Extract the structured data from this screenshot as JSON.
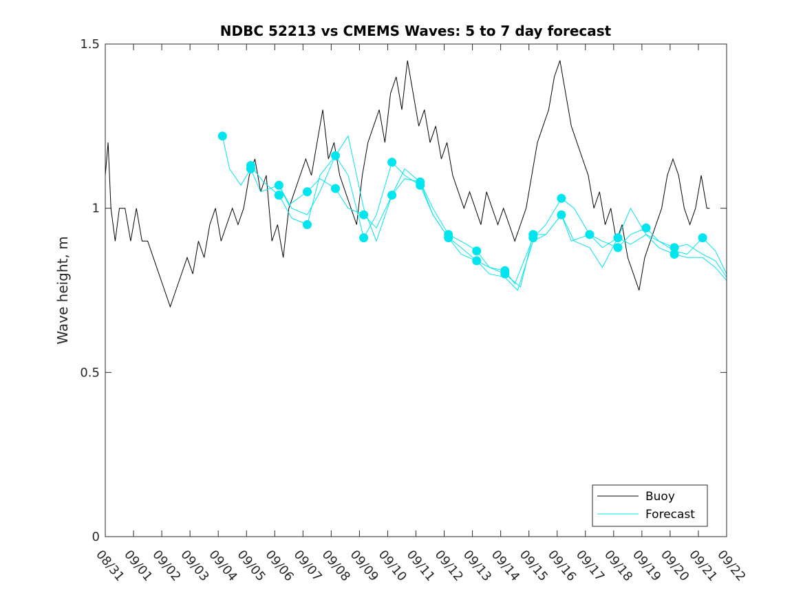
{
  "chart_data": {
    "type": "line",
    "title": "NDBC 52213 vs CMEMS Waves: 5 to 7 day forecast",
    "xlabel": "",
    "ylabel": "Wave height, m",
    "xlim": [
      0,
      22
    ],
    "ylim": [
      0,
      1.5
    ],
    "x_tick_labels": [
      "08/31",
      "09/01",
      "09/02",
      "09/03",
      "09/04",
      "09/05",
      "09/06",
      "09/07",
      "09/08",
      "09/09",
      "09/10",
      "09/11",
      "09/12",
      "09/13",
      "09/14",
      "09/15",
      "09/16",
      "09/17",
      "09/18",
      "09/19",
      "09/20",
      "09/21",
      "09/22"
    ],
    "y_ticks": [
      0,
      0.5,
      1,
      1.5
    ],
    "y_tick_labels": [
      "0",
      "0.5",
      "1",
      "1.5"
    ],
    "legend": {
      "position": "bottom-right",
      "entries": [
        "Buoy",
        "Forecast"
      ]
    },
    "colors": {
      "buoy": "#000000",
      "forecast": "#00e5ee",
      "axis": "#262626"
    },
    "buoy": {
      "name": "Buoy",
      "x": [
        0,
        0.1,
        0.2,
        0.35,
        0.5,
        0.7,
        0.9,
        1.1,
        1.3,
        1.5,
        1.7,
        1.9,
        2.1,
        2.3,
        2.5,
        2.7,
        2.9,
        3.1,
        3.3,
        3.5,
        3.7,
        3.9,
        4.1,
        4.3,
        4.5,
        4.7,
        4.9,
        5.1,
        5.3,
        5.5,
        5.7,
        5.9,
        6.1,
        6.3,
        6.5,
        6.7,
        6.9,
        7.1,
        7.3,
        7.5,
        7.7,
        7.9,
        8.1,
        8.3,
        8.5,
        8.7,
        8.9,
        9.1,
        9.3,
        9.5,
        9.7,
        9.9,
        10.1,
        10.3,
        10.5,
        10.7,
        10.9,
        11.1,
        11.3,
        11.5,
        11.7,
        11.9,
        12.1,
        12.3,
        12.5,
        12.7,
        12.9,
        13.1,
        13.3,
        13.5,
        13.7,
        13.9,
        14.1,
        14.3,
        14.5,
        14.7,
        14.9,
        15.1,
        15.3,
        15.5,
        15.7,
        15.9,
        16.1,
        16.3,
        16.5,
        16.7,
        16.9,
        17.1,
        17.3,
        17.5,
        17.7,
        17.9,
        18.1,
        18.3,
        18.5,
        18.7,
        18.9,
        19.1,
        19.3,
        19.5,
        19.7,
        19.9,
        20.1,
        20.3,
        20.5,
        20.7,
        20.9,
        21.1,
        21.3,
        21.4
      ],
      "values": [
        1.1,
        1.2,
        1.0,
        0.9,
        1.0,
        1.0,
        0.9,
        1.0,
        0.9,
        0.9,
        0.85,
        0.8,
        0.75,
        0.7,
        0.75,
        0.8,
        0.85,
        0.8,
        0.9,
        0.85,
        0.95,
        1.0,
        0.9,
        0.95,
        1.0,
        0.95,
        1.0,
        1.1,
        1.15,
        1.05,
        1.1,
        0.9,
        0.95,
        0.85,
        1.0,
        1.05,
        1.1,
        1.15,
        1.1,
        1.2,
        1.3,
        1.15,
        1.2,
        1.1,
        1.05,
        1.0,
        0.95,
        1.1,
        1.2,
        1.25,
        1.3,
        1.2,
        1.35,
        1.4,
        1.3,
        1.45,
        1.35,
        1.25,
        1.3,
        1.2,
        1.25,
        1.15,
        1.2,
        1.1,
        1.05,
        1.0,
        1.05,
        1.0,
        0.95,
        1.05,
        1.0,
        0.95,
        1.0,
        0.95,
        0.9,
        0.95,
        1.0,
        1.1,
        1.2,
        1.25,
        1.3,
        1.4,
        1.45,
        1.35,
        1.25,
        1.2,
        1.15,
        1.1,
        1.0,
        1.05,
        0.95,
        1.0,
        0.9,
        0.95,
        0.85,
        0.8,
        0.75,
        0.85,
        0.9,
        0.95,
        1.0,
        1.1,
        1.15,
        1.1,
        1.0,
        0.95,
        1.0,
        1.1,
        1.0,
        1.0
      ]
    },
    "forecast": {
      "name": "Forecast",
      "series": [
        {
          "x": [
            4.15,
            4.4,
            4.8,
            5.15,
            5.5,
            6.15,
            6.5,
            7.15,
            7.6,
            8.15,
            8.6,
            9.15,
            9.6,
            10.15,
            10.6,
            11.15,
            11.6,
            12.15,
            12.8,
            13.15,
            13.6,
            14.15,
            14.7,
            15.15,
            15.6,
            16.15,
            16.5,
            17.15,
            17.6,
            18.15,
            18.6,
            19.15,
            19.6,
            20.15,
            20.6,
            21.15,
            21.6,
            22.0
          ],
          "values": [
            1.22,
            1.12,
            1.07,
            1.12,
            1.05,
            1.07,
            1.01,
            1.05,
            1.09,
            1.06,
            1.0,
            0.98,
            0.94,
            1.04,
            1.09,
            1.08,
            1.0,
            0.92,
            0.89,
            0.87,
            0.82,
            0.8,
            0.76,
            0.92,
            0.92,
            0.98,
            0.9,
            0.92,
            0.9,
            0.88,
            0.92,
            0.94,
            0.9,
            0.87,
            0.86,
            0.91,
            0.87,
            0.8
          ]
        },
        {
          "x": [
            5.15,
            5.6,
            6.15,
            6.6,
            7.15,
            7.6,
            8.15,
            8.6,
            9.15,
            9.6,
            10.15,
            10.6,
            11.15,
            11.6,
            12.15,
            12.6,
            13.15,
            13.6,
            14.15,
            14.5,
            15.15,
            15.6,
            16.15,
            16.6,
            17.15,
            17.6,
            18.15,
            18.6,
            19.15,
            19.6,
            20.15,
            20.6,
            21.15,
            21.6,
            22.0
          ],
          "values": [
            1.13,
            1.08,
            1.04,
            0.97,
            0.95,
            1.1,
            1.16,
            1.1,
            0.91,
            0.98,
            1.14,
            1.1,
            1.07,
            0.98,
            0.91,
            0.88,
            0.84,
            0.82,
            0.81,
            0.77,
            0.91,
            0.95,
            1.03,
            1.0,
            0.92,
            0.88,
            0.91,
            1.0,
            0.92,
            0.9,
            0.88,
            0.89,
            0.86,
            0.84,
            0.79
          ]
        },
        {
          "x": [
            6.15,
            6.6,
            7.15,
            7.6,
            8.15,
            8.6,
            9.15,
            9.6,
            10.15,
            10.6,
            11.15,
            11.6,
            12.15,
            12.6,
            13.15,
            13.6,
            14.15,
            14.6,
            15.15,
            15.6,
            16.15,
            16.6,
            17.15,
            17.6,
            18.15,
            18.6,
            19.15,
            19.6,
            20.15,
            20.6,
            21.15,
            21.6,
            22.0
          ],
          "values": [
            1.07,
            1.0,
            0.98,
            1.05,
            1.16,
            1.22,
            1.0,
            0.9,
            1.04,
            1.12,
            1.08,
            0.98,
            0.91,
            0.86,
            0.84,
            0.8,
            0.79,
            0.75,
            0.9,
            0.92,
            0.98,
            0.9,
            0.88,
            0.82,
            0.91,
            0.89,
            0.92,
            0.88,
            0.86,
            0.85,
            0.85,
            0.82,
            0.78
          ]
        }
      ],
      "init_points": {
        "x": [
          4.15,
          5.15,
          5.15,
          6.15,
          6.15,
          6.15,
          7.15,
          7.15,
          8.15,
          8.15,
          9.15,
          9.15,
          10.15,
          10.15,
          11.15,
          11.15,
          12.15,
          12.15,
          13.15,
          13.15,
          14.15,
          14.15,
          15.15,
          15.15,
          16.15,
          16.15,
          17.15,
          18.15,
          18.15,
          19.15,
          20.15,
          20.15,
          21.15
        ],
        "values": [
          1.22,
          1.13,
          1.12,
          1.07,
          1.04,
          1.04,
          1.05,
          0.95,
          1.16,
          1.06,
          0.98,
          0.91,
          1.14,
          1.04,
          1.08,
          1.07,
          0.92,
          0.91,
          0.87,
          0.84,
          0.81,
          0.8,
          0.92,
          0.91,
          1.03,
          0.98,
          0.92,
          0.91,
          0.88,
          0.94,
          0.88,
          0.86,
          0.91
        ]
      }
    }
  }
}
